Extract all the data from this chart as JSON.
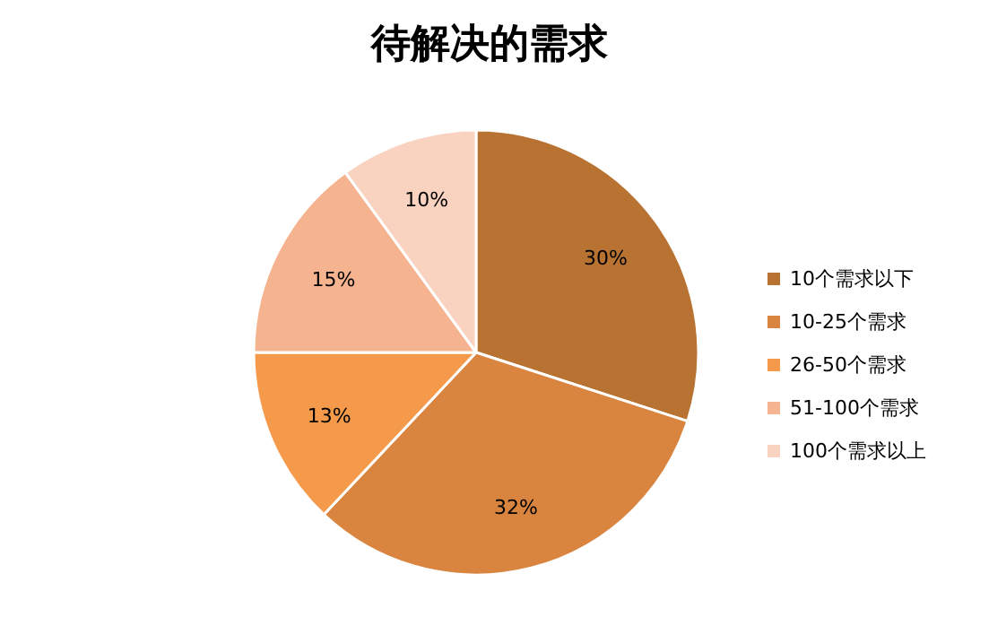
{
  "chart_data": {
    "type": "pie",
    "title": "待解决的需求",
    "categories": [
      "10个需求以下",
      "10-25个需求",
      "26-50个需求",
      "51-100个需求",
      "100个需求以上"
    ],
    "values": [
      30,
      32,
      13,
      15,
      10
    ],
    "value_labels": [
      "30%",
      "32%",
      "13%",
      "15%",
      "10%"
    ],
    "colors": [
      "#b87333",
      "#d9843f",
      "#f59a4a",
      "#f6b38f",
      "#f9d2c0"
    ],
    "legend": "right"
  }
}
